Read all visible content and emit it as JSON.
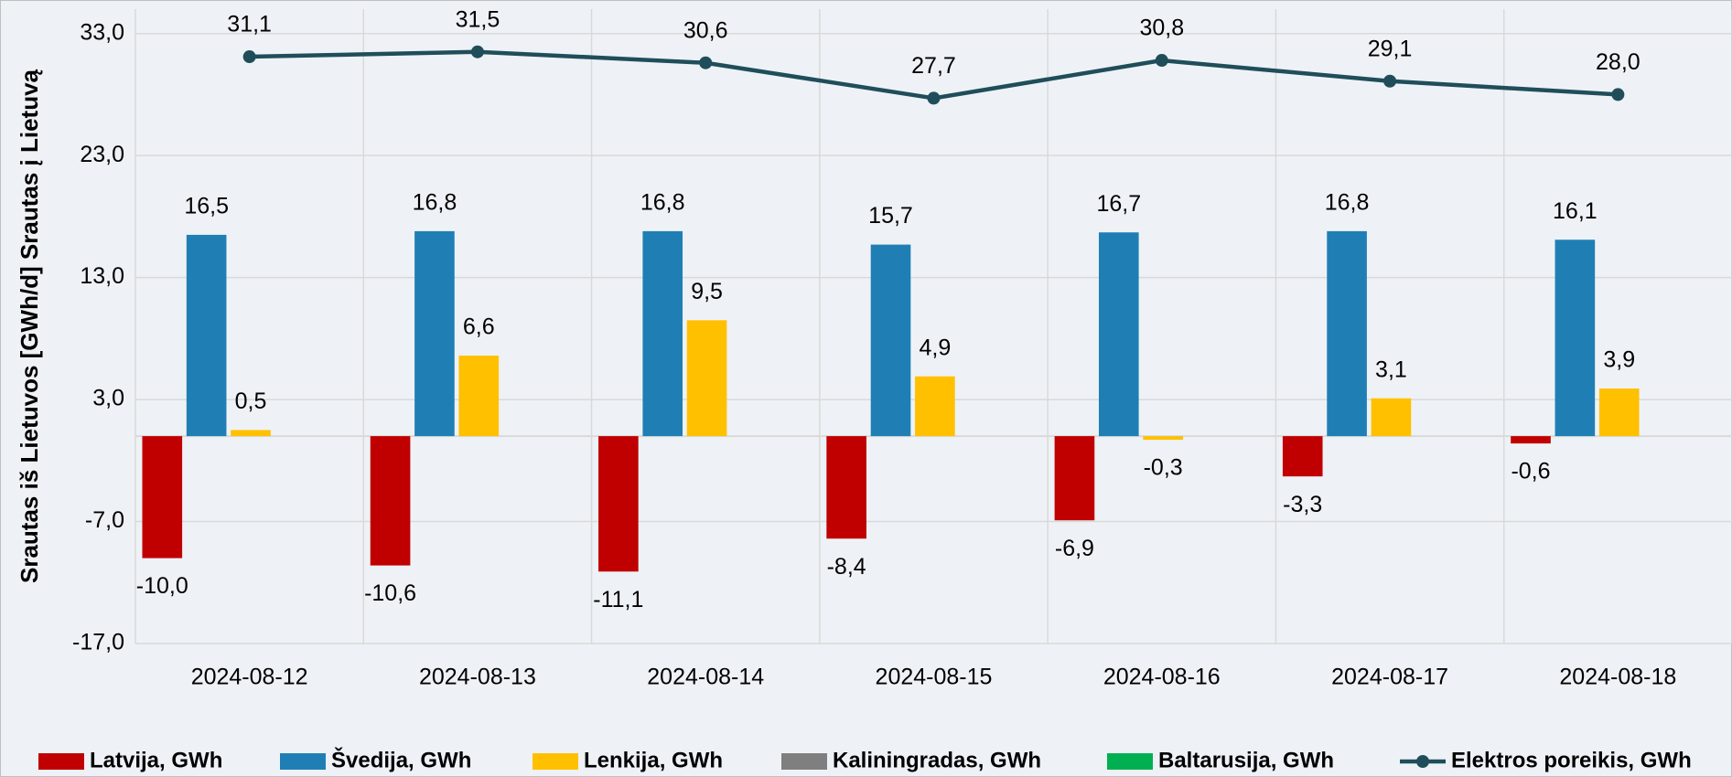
{
  "chart_data": {
    "type": "bar",
    "y_label": "Srautas iš Lietuvos [GWh/d] Srautas į Lietuvą",
    "categories": [
      "2024-08-12",
      "2024-08-13",
      "2024-08-14",
      "2024-08-15",
      "2024-08-16",
      "2024-08-17",
      "2024-08-18"
    ],
    "series": [
      {
        "name": "Latvija, GWh",
        "color": "#c00000",
        "values": [
          -10.0,
          -10.6,
          -11.1,
          -8.4,
          -6.9,
          -3.3,
          -0.6
        ],
        "value_labels": [
          "-10,0",
          "-10,6",
          "-11,1",
          "-8,4",
          "-6,9",
          "-3,3",
          "-0,6"
        ]
      },
      {
        "name": "Švedija, GWh",
        "color": "#1f7fb5",
        "values": [
          16.5,
          16.8,
          16.8,
          15.7,
          16.7,
          16.8,
          16.1
        ],
        "value_labels": [
          "16,5",
          "16,8",
          "16,8",
          "15,7",
          "16,7",
          "16,8",
          "16,1"
        ]
      },
      {
        "name": "Lenkija, GWh",
        "color": "#ffc000",
        "values": [
          0.5,
          6.6,
          9.5,
          4.9,
          -0.3,
          3.1,
          3.9
        ],
        "value_labels": [
          "0,5",
          "6,6",
          "9,5",
          "4,9",
          "-0,3",
          "3,1",
          "3,9"
        ]
      },
      {
        "name": "Kaliningradas, GWh",
        "color": "#7f7f7f",
        "values": [
          0,
          0,
          0,
          0,
          0,
          0,
          0
        ]
      },
      {
        "name": "Baltarusija, GWh",
        "color": "#00b050",
        "values": [
          0,
          0,
          0,
          0,
          0,
          0,
          0
        ]
      },
      {
        "name": "Elektros poreikis, GWh",
        "color": "#1f4e5a",
        "type": "line",
        "values": [
          31.1,
          31.5,
          30.6,
          27.7,
          30.8,
          29.1,
          28.0
        ],
        "value_labels": [
          "31,1",
          "31,5",
          "30,6",
          "27,7",
          "30,8",
          "29,1",
          "28,0"
        ]
      }
    ],
    "ylim": [
      -17,
      35
    ],
    "yticks": [
      {
        "value": -17,
        "label": "-17,0"
      },
      {
        "value": -7,
        "label": "-7,0"
      },
      {
        "value": 3,
        "label": "3,0"
      },
      {
        "value": 13,
        "label": "13,0"
      },
      {
        "value": 23,
        "label": "23,0"
      },
      {
        "value": 33,
        "label": "33,0"
      }
    ],
    "grid": true,
    "legend": "bottom"
  }
}
